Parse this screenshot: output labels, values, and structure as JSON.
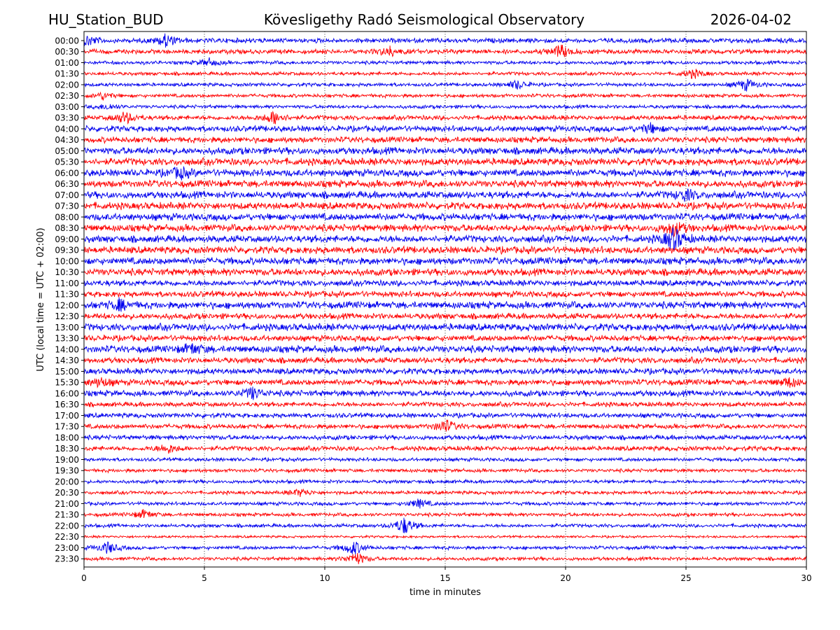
{
  "chart_data": {
    "type": "line",
    "station": "HU_Station_BUD",
    "title": "Kövesligethy Radó Seismological Observatory",
    "date": "2026-04-02",
    "xlabel": "time in minutes",
    "ylabel": "UTC (local time = UTC + 02:00)",
    "xlim": [
      0,
      30
    ],
    "x_ticks": [
      "0",
      "5",
      "10",
      "15",
      "20",
      "25",
      "30"
    ],
    "grid": "vertical dotted at 5-minute intervals",
    "series_colors": [
      "#0000ee",
      "#ff0000"
    ],
    "rows": [
      {
        "label": "00:00",
        "amp": 4,
        "events": [
          [
            0.15,
            7
          ],
          [
            3.4,
            9
          ]
        ]
      },
      {
        "label": "00:30",
        "amp": 4,
        "events": [
          [
            12.7,
            6
          ],
          [
            19.8,
            9
          ]
        ]
      },
      {
        "label": "01:00",
        "amp": 3,
        "events": [
          [
            5.2,
            5
          ]
        ]
      },
      {
        "label": "01:30",
        "amp": 3,
        "events": [
          [
            25.3,
            6
          ]
        ]
      },
      {
        "label": "02:00",
        "amp": 3,
        "events": [
          [
            18.0,
            6
          ],
          [
            27.5,
            8
          ]
        ]
      },
      {
        "label": "02:30",
        "amp": 3,
        "events": [
          [
            0.8,
            5
          ]
        ]
      },
      {
        "label": "03:00",
        "amp": 3,
        "events": [
          [
            1.0,
            4
          ]
        ]
      },
      {
        "label": "03:30",
        "amp": 4,
        "events": [
          [
            1.7,
            8
          ],
          [
            7.9,
            9
          ]
        ]
      },
      {
        "label": "04:00",
        "amp": 5,
        "events": [
          [
            23.5,
            6
          ]
        ]
      },
      {
        "label": "04:30",
        "amp": 5,
        "events": []
      },
      {
        "label": "05:00",
        "amp": 6,
        "events": []
      },
      {
        "label": "05:30",
        "amp": 6,
        "events": []
      },
      {
        "label": "06:00",
        "amp": 6,
        "events": [
          [
            4.0,
            7
          ]
        ]
      },
      {
        "label": "06:30",
        "amp": 6,
        "events": []
      },
      {
        "label": "07:00",
        "amp": 6,
        "events": [
          [
            25.0,
            7
          ]
        ]
      },
      {
        "label": "07:30",
        "amp": 6,
        "events": []
      },
      {
        "label": "08:00",
        "amp": 6,
        "events": []
      },
      {
        "label": "08:30",
        "amp": 6,
        "events": [
          [
            24.5,
            10
          ]
        ]
      },
      {
        "label": "09:00",
        "amp": 6,
        "events": [
          [
            24.5,
            16
          ]
        ]
      },
      {
        "label": "09:30",
        "amp": 6,
        "events": []
      },
      {
        "label": "10:00",
        "amp": 6,
        "events": []
      },
      {
        "label": "10:30",
        "amp": 6,
        "events": []
      },
      {
        "label": "11:00",
        "amp": 5,
        "events": []
      },
      {
        "label": "11:30",
        "amp": 5,
        "events": []
      },
      {
        "label": "12:00",
        "amp": 6,
        "events": [
          [
            1.5,
            7
          ]
        ]
      },
      {
        "label": "12:30",
        "amp": 5,
        "events": []
      },
      {
        "label": "13:00",
        "amp": 6,
        "events": []
      },
      {
        "label": "13:30",
        "amp": 5,
        "events": []
      },
      {
        "label": "14:00",
        "amp": 6,
        "events": [
          [
            4.5,
            7
          ]
        ]
      },
      {
        "label": "14:30",
        "amp": 5,
        "events": []
      },
      {
        "label": "15:00",
        "amp": 5,
        "events": []
      },
      {
        "label": "15:30",
        "amp": 5,
        "events": [
          [
            0.7,
            6
          ],
          [
            29.3,
            6
          ]
        ]
      },
      {
        "label": "16:00",
        "amp": 5,
        "events": [
          [
            7.0,
            8
          ]
        ]
      },
      {
        "label": "16:30",
        "amp": 4,
        "events": []
      },
      {
        "label": "17:00",
        "amp": 4,
        "events": []
      },
      {
        "label": "17:30",
        "amp": 4,
        "events": [
          [
            15.0,
            9
          ]
        ]
      },
      {
        "label": "18:00",
        "amp": 4,
        "events": []
      },
      {
        "label": "18:30",
        "amp": 4,
        "events": [
          [
            3.5,
            6
          ]
        ]
      },
      {
        "label": "19:00",
        "amp": 3,
        "events": []
      },
      {
        "label": "19:30",
        "amp": 3,
        "events": []
      },
      {
        "label": "20:00",
        "amp": 3,
        "events": []
      },
      {
        "label": "20:30",
        "amp": 3,
        "events": [
          [
            9.0,
            5
          ]
        ]
      },
      {
        "label": "21:00",
        "amp": 3,
        "events": [
          [
            13.9,
            6
          ]
        ]
      },
      {
        "label": "21:30",
        "amp": 3,
        "events": [
          [
            2.5,
            6
          ]
        ]
      },
      {
        "label": "22:00",
        "amp": 3,
        "events": [
          [
            13.3,
            12
          ]
        ]
      },
      {
        "label": "22:30",
        "amp": 2,
        "events": []
      },
      {
        "label": "23:00",
        "amp": 3,
        "events": [
          [
            1.0,
            8
          ],
          [
            11.2,
            10
          ]
        ]
      },
      {
        "label": "23:30",
        "amp": 3,
        "events": [
          [
            11.3,
            9
          ]
        ]
      }
    ]
  }
}
